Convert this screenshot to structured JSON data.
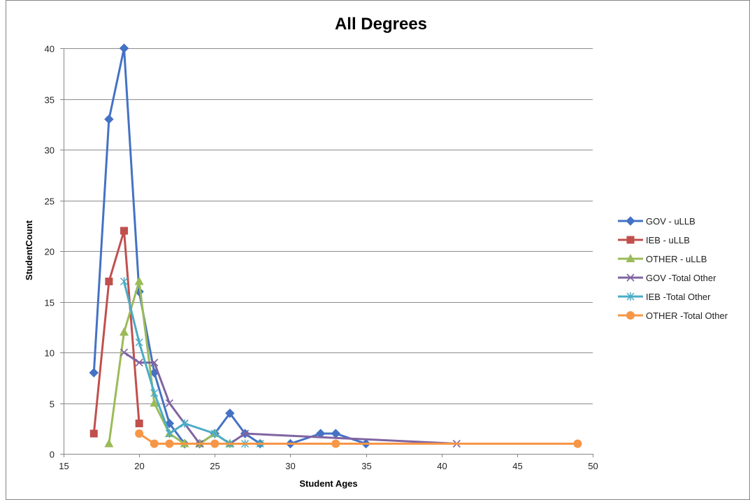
{
  "chart_data": {
    "type": "line",
    "title": "All Degrees",
    "xlabel": "Student Ages",
    "ylabel": "StudentCount",
    "xlim": [
      15,
      50
    ],
    "ylim": [
      0,
      40
    ],
    "xticks": [
      15,
      20,
      25,
      30,
      35,
      40,
      45,
      50
    ],
    "yticks": [
      0,
      5,
      10,
      15,
      20,
      25,
      30,
      35,
      40
    ],
    "grid": "horizontal",
    "legend_position": "right",
    "series": [
      {
        "name": "GOV - uLLB",
        "color": "#4472C4",
        "marker": "diamond",
        "points": [
          [
            17,
            8
          ],
          [
            18,
            33
          ],
          [
            19,
            40
          ],
          [
            20,
            16
          ],
          [
            21,
            8
          ],
          [
            22,
            3
          ],
          [
            23,
            1
          ],
          [
            24,
            1
          ],
          [
            25,
            2
          ],
          [
            26,
            4
          ],
          [
            27,
            2
          ],
          [
            28,
            1
          ],
          [
            30,
            1
          ],
          [
            32,
            2
          ],
          [
            33,
            2
          ],
          [
            35,
            1
          ]
        ]
      },
      {
        "name": "IEB - uLLB",
        "color": "#C0504D",
        "marker": "square",
        "points": [
          [
            17,
            2
          ],
          [
            18,
            17
          ],
          [
            19,
            22
          ],
          [
            20,
            3
          ]
        ]
      },
      {
        "name": "OTHER - uLLB",
        "color": "#9BBB59",
        "marker": "triangle",
        "points": [
          [
            18,
            1
          ],
          [
            19,
            12
          ],
          [
            20,
            17
          ],
          [
            21,
            5
          ],
          [
            22,
            2
          ],
          [
            23,
            1
          ],
          [
            24,
            1
          ],
          [
            25,
            2
          ],
          [
            26,
            1
          ]
        ]
      },
      {
        "name": "GOV -Total Other",
        "color": "#8064A2",
        "marker": "x",
        "points": [
          [
            19,
            10
          ],
          [
            20,
            9
          ],
          [
            21,
            9
          ],
          [
            22,
            5
          ],
          [
            23,
            3
          ],
          [
            24,
            1
          ],
          [
            26,
            1
          ],
          [
            27,
            2
          ],
          [
            41,
            1
          ]
        ]
      },
      {
        "name": "IEB -Total Other",
        "color": "#4BACC6",
        "marker": "star",
        "points": [
          [
            19,
            17
          ],
          [
            20,
            11
          ],
          [
            21,
            6
          ],
          [
            22,
            2
          ],
          [
            23,
            3
          ],
          [
            25,
            2
          ],
          [
            26,
            1
          ],
          [
            27,
            1
          ],
          [
            28,
            1
          ]
        ]
      },
      {
        "name": "OTHER -Total Other",
        "color": "#F79646",
        "marker": "circle",
        "points": [
          [
            20,
            2
          ],
          [
            21,
            1
          ],
          [
            22,
            1
          ],
          [
            25,
            1
          ],
          [
            33,
            1
          ],
          [
            49,
            1
          ]
        ]
      }
    ]
  }
}
